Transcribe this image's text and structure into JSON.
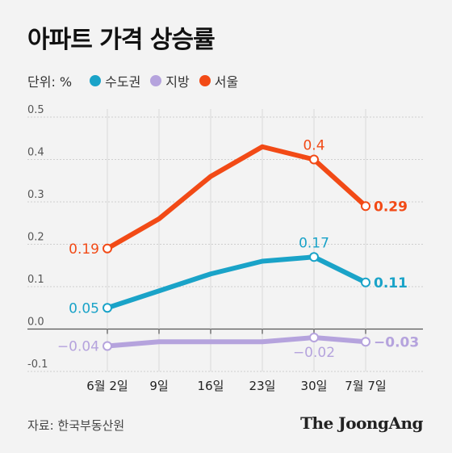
{
  "chart_data": {
    "type": "line",
    "title": "아파트 가격 상승률",
    "unit_label": "단위: %",
    "categories": [
      "6월 2일",
      "9일",
      "16일",
      "23일",
      "30일",
      "7월 7일"
    ],
    "ylim": [
      -0.1,
      0.5
    ],
    "yticks": [
      "0.5",
      "0.4",
      "0.3",
      "0.2",
      "0.1",
      "0.0",
      "-0.1"
    ],
    "grid": true,
    "legend_position": "top-left",
    "series": [
      {
        "name": "수도권",
        "color": "#1aa3c8",
        "values": [
          0.05,
          0.09,
          0.13,
          0.16,
          0.17,
          0.11
        ],
        "labels": [
          {
            "index": 0,
            "text": "0.05",
            "pos": "left",
            "bold": false
          },
          {
            "index": 4,
            "text": "0.17",
            "pos": "above",
            "bold": false
          },
          {
            "index": 5,
            "text": "0.11",
            "pos": "right",
            "bold": true
          }
        ]
      },
      {
        "name": "지방",
        "color": "#b5a3dd",
        "values": [
          -0.04,
          -0.03,
          -0.03,
          -0.03,
          -0.02,
          -0.03
        ],
        "labels": [
          {
            "index": 0,
            "text": "−0.04",
            "pos": "left",
            "bold": false
          },
          {
            "index": 4,
            "text": "−0.02",
            "pos": "below",
            "bold": false
          },
          {
            "index": 5,
            "text": "−0.03",
            "pos": "right",
            "bold": true
          }
        ]
      },
      {
        "name": "서울",
        "color": "#f24a16",
        "values": [
          0.19,
          0.26,
          0.36,
          0.43,
          0.4,
          0.29
        ],
        "labels": [
          {
            "index": 0,
            "text": "0.19",
            "pos": "left",
            "bold": false
          },
          {
            "index": 4,
            "text": "0.4",
            "pos": "above",
            "bold": false
          },
          {
            "index": 5,
            "text": "0.29",
            "pos": "right",
            "bold": true
          }
        ]
      }
    ],
    "markers": [
      0,
      4,
      5
    ]
  },
  "source": "자료: 한국부동산원",
  "brand": "The JoongAng"
}
